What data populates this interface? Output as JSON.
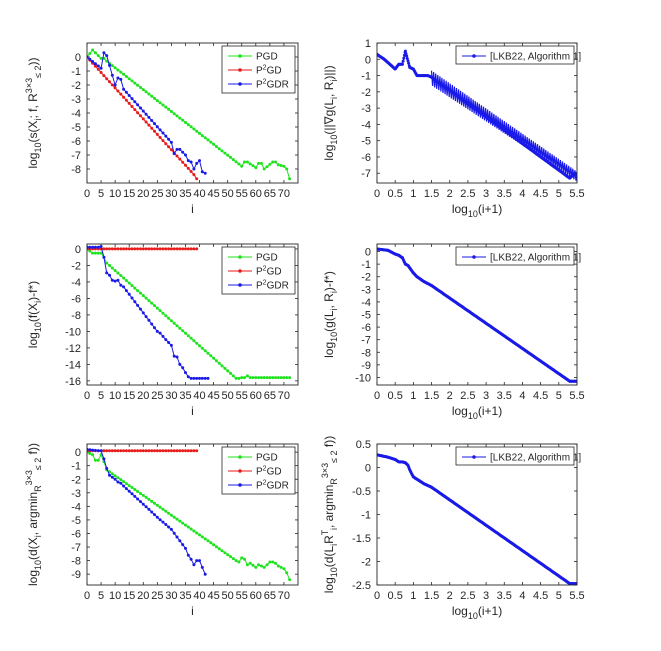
{
  "chart_data": [
    {
      "type": "line",
      "xlabel": "i",
      "ylabel": "log10(s(Xi; f, R≤2^{3×3}))",
      "xlim": [
        0,
        75
      ],
      "ylim": [
        -9,
        1
      ],
      "xticks": [
        0,
        5,
        10,
        15,
        20,
        25,
        30,
        35,
        40,
        45,
        50,
        55,
        60,
        65,
        70
      ],
      "yticks": [
        0,
        -1,
        -2,
        -3,
        -4,
        -5,
        -6,
        -7,
        -8
      ],
      "legend_position": "top-right",
      "series": [
        {
          "name": "PGD",
          "color": "#1de31d",
          "x": [
            0,
            2,
            4,
            5,
            6,
            7,
            55,
            56,
            57,
            60,
            61,
            62,
            63,
            66,
            67,
            68,
            70,
            71,
            72
          ],
          "y": [
            0,
            0.5,
            0.1,
            -0.1,
            -0.1,
            -0.3,
            -7.8,
            -7.5,
            -7.5,
            -7.9,
            -7.6,
            -7.6,
            -8.0,
            -7.5,
            -7.5,
            -7.7,
            -7.8,
            -8.0,
            -8.7
          ]
        },
        {
          "name": "P2GD",
          "color": "#e81a1a",
          "x": [
            0,
            38,
            39
          ],
          "y": [
            0,
            -8.4,
            -8.7
          ]
        },
        {
          "name": "P2GDR",
          "color": "#1a1ae8",
          "x": [
            0,
            5,
            6,
            7,
            10,
            11,
            12,
            13,
            30,
            31,
            32,
            33,
            35,
            36,
            37,
            38,
            39,
            40,
            41,
            42
          ],
          "y": [
            0,
            -0.8,
            0.3,
            0.1,
            -2.0,
            -1.5,
            -1.6,
            -2.3,
            -6.1,
            -6.9,
            -6.6,
            -6.6,
            -7.0,
            -7.4,
            -7.5,
            -8.0,
            -7.6,
            -7.4,
            -8.2,
            -8.3
          ]
        }
      ]
    },
    {
      "type": "line",
      "xlabel": "log10(i+1)",
      "ylabel": "log10(||∇g(Li, Ri)||)",
      "xlim": [
        0,
        5.5
      ],
      "ylim": [
        -7.6,
        1
      ],
      "xticks": [
        0,
        0.5,
        1,
        1.5,
        2,
        2.5,
        3,
        3.5,
        4,
        4.5,
        5,
        5.5
      ],
      "yticks": [
        1,
        0,
        -1,
        -2,
        -3,
        -4,
        -5,
        -6,
        -7
      ],
      "legend_position": "top-right",
      "series": [
        {
          "name": "[LKB22, Algorithm 1]",
          "color": "#1a1ae8",
          "x": [
            0,
            0.2,
            0.5,
            0.6,
            0.7,
            0.78,
            0.9,
            1.0,
            1.1,
            1.2,
            1.3,
            1.4,
            1.5,
            5.3,
            5.45,
            5.5
          ],
          "y": [
            0.3,
            0,
            -0.6,
            -0.3,
            -0.3,
            0.5,
            -0.5,
            -0.6,
            -1.0,
            -1.0,
            -1.0,
            -1.0,
            -1.1,
            -7.3,
            -7.0,
            -7.3
          ],
          "band_from_x": 1.5,
          "band_to_x": 5.5,
          "band_upper": [
            -0.7,
            -6.9
          ],
          "band_lower": [
            -1.6,
            -7.5
          ]
        }
      ]
    },
    {
      "type": "line",
      "xlabel": "i",
      "ylabel": "log10(f(Xi)-f*)",
      "xlim": [
        0,
        75
      ],
      "ylim": [
        -16.5,
        0.6
      ],
      "xticks": [
        0,
        5,
        10,
        15,
        20,
        25,
        30,
        35,
        40,
        45,
        50,
        55,
        60,
        65,
        70
      ],
      "yticks": [
        0,
        -2,
        -4,
        -6,
        -8,
        -10,
        -12,
        -14,
        -16
      ],
      "legend_position": "top-right",
      "series": [
        {
          "name": "PGD",
          "color": "#1de31d",
          "x": [
            0,
            2,
            3,
            5,
            6,
            7,
            53,
            54,
            55,
            56,
            57,
            58,
            72
          ],
          "y": [
            0,
            -0.5,
            -0.5,
            -0.5,
            -1.0,
            -1.7,
            -15.7,
            -15.7,
            -15.6,
            -15.6,
            -15.4,
            -15.6,
            -15.6
          ]
        },
        {
          "name": "P2GD",
          "color": "#e81a1a",
          "x": [
            0,
            39
          ],
          "y": [
            0,
            0
          ]
        },
        {
          "name": "P2GDR",
          "color": "#1a1ae8",
          "x": [
            0,
            4,
            5,
            6,
            7,
            8,
            9,
            10,
            11,
            12,
            13,
            25,
            26,
            28,
            30,
            31,
            32,
            33,
            34,
            35,
            36,
            37,
            39,
            43
          ],
          "y": [
            0.2,
            0.2,
            0.3,
            -1.0,
            -2.9,
            -3.2,
            -3.8,
            -3.9,
            -3.8,
            -4.4,
            -4.6,
            -10.0,
            -10.2,
            -11.0,
            -11.7,
            -13.0,
            -13.1,
            -14.0,
            -14.4,
            -15.0,
            -15.5,
            -15.7,
            -15.7,
            -15.7
          ]
        }
      ]
    },
    {
      "type": "line",
      "xlabel": "log10(i+1)",
      "ylabel": "log10(g(Li, Ri)-f*)",
      "xlim": [
        0,
        5.5
      ],
      "ylim": [
        -10.6,
        0.6
      ],
      "xticks": [
        0,
        0.5,
        1,
        1.5,
        2,
        2.5,
        3,
        3.5,
        4,
        4.5,
        5,
        5.5
      ],
      "yticks": [
        0,
        -1,
        -2,
        -3,
        -4,
        -5,
        -6,
        -7,
        -8,
        -9,
        -10
      ],
      "legend_position": "top-right",
      "series": [
        {
          "name": "[LKB22, Algorithm 1]",
          "color": "#1a1ae8",
          "x": [
            0,
            0.3,
            0.5,
            0.6,
            0.7,
            0.78,
            0.85,
            0.9,
            1.0,
            1.1,
            1.2,
            1.3,
            1.5,
            5.3,
            5.5
          ],
          "y": [
            0.2,
            0.1,
            -0.2,
            -0.3,
            -0.5,
            -1.0,
            -1.1,
            -1.3,
            -1.7,
            -2.0,
            -2.2,
            -2.4,
            -2.7,
            -10.3,
            -10.3
          ]
        }
      ]
    },
    {
      "type": "line",
      "xlabel": "i",
      "ylabel": "log10(d(Xi, argminR≤2^{3×3} f))",
      "xlim": [
        0,
        75
      ],
      "ylim": [
        -9.8,
        0.6
      ],
      "xticks": [
        0,
        5,
        10,
        15,
        20,
        25,
        30,
        35,
        40,
        45,
        50,
        55,
        60,
        65,
        70
      ],
      "yticks": [
        0,
        -1,
        -2,
        -3,
        -4,
        -5,
        -6,
        -7,
        -8,
        -9
      ],
      "legend_position": "top-right",
      "series": [
        {
          "name": "PGD",
          "color": "#1de31d",
          "x": [
            0,
            2,
            3,
            4,
            5,
            6,
            7,
            53,
            54,
            55,
            56,
            57,
            58,
            60,
            61,
            62,
            63,
            65,
            66,
            67,
            68,
            70,
            71,
            72
          ],
          "y": [
            0,
            -0.2,
            -0.6,
            -0.6,
            -0.2,
            -0.7,
            -1.3,
            -8.0,
            -8.1,
            -7.8,
            -7.9,
            -8.3,
            -8.2,
            -8.5,
            -8.3,
            -8.4,
            -8.5,
            -8.1,
            -8.1,
            -8.2,
            -8.4,
            -8.6,
            -8.9,
            -9.4
          ]
        },
        {
          "name": "P2GD",
          "color": "#e81a1a",
          "x": [
            0,
            39
          ],
          "y": [
            0.1,
            0.1
          ]
        },
        {
          "name": "P2GDR",
          "color": "#1a1ae8",
          "x": [
            0,
            4,
            5,
            6,
            7,
            8,
            10,
            11,
            12,
            13,
            25,
            30,
            35,
            36,
            37,
            38,
            39,
            40,
            41,
            42
          ],
          "y": [
            0.2,
            0.1,
            0.1,
            -0.5,
            -1.2,
            -1.7,
            -2.0,
            -2.2,
            -2.3,
            -2.5,
            -4.8,
            -5.7,
            -7.1,
            -7.6,
            -7.9,
            -8.3,
            -8.0,
            -8.0,
            -8.5,
            -9.0
          ]
        }
      ]
    },
    {
      "type": "line",
      "xlabel": "log10(i+1)",
      "ylabel": "log10(d(LiRi^T, argminR≤2^{3×3} f))",
      "xlim": [
        0,
        5.5
      ],
      "ylim": [
        -2.5,
        0.5
      ],
      "xticks": [
        0,
        0.5,
        1,
        1.5,
        2,
        2.5,
        3,
        3.5,
        4,
        4.5,
        5,
        5.5
      ],
      "yticks": [
        0.5,
        0,
        -0.5,
        -1,
        -1.5,
        -2,
        -2.5
      ],
      "legend_position": "top-right",
      "series": [
        {
          "name": "[LKB22, Algorithm 1]",
          "color": "#1a1ae8",
          "x": [
            0,
            0.3,
            0.5,
            0.6,
            0.7,
            0.78,
            0.85,
            0.9,
            1.0,
            1.1,
            1.2,
            1.3,
            1.5,
            5.3,
            5.5
          ],
          "y": [
            0.27,
            0.22,
            0.17,
            0.12,
            0.12,
            0.1,
            0.05,
            -0.05,
            -0.2,
            -0.25,
            -0.3,
            -0.35,
            -0.42,
            -2.47,
            -2.47
          ]
        }
      ]
    }
  ]
}
